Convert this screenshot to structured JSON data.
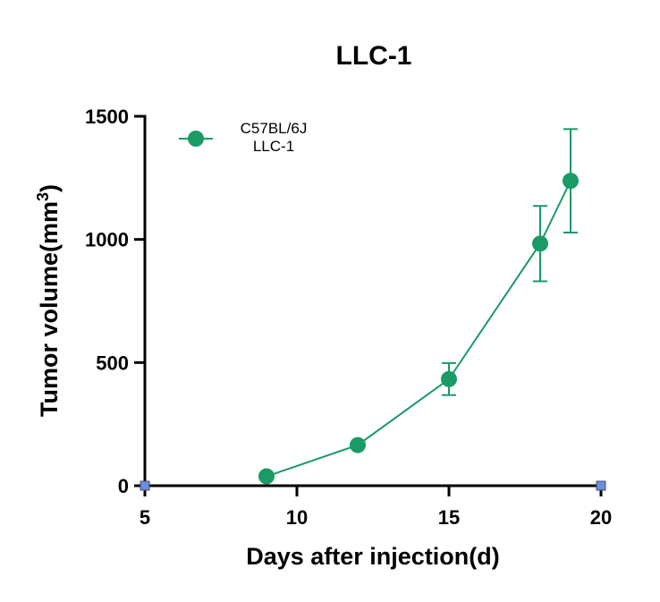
{
  "chart_data": {
    "type": "line",
    "title": "LLC-1",
    "xlabel": "Days after injection(d)",
    "ylabel": "Tumor volume(mm",
    "ylabel_sup": "3",
    "ylabel_close": ")",
    "xlim": [
      5,
      20
    ],
    "ylim": [
      0,
      1500
    ],
    "xticks": [
      "5",
      "10",
      "15",
      "20"
    ],
    "yticks": [
      "0",
      "500",
      "1000",
      "1500"
    ],
    "legend_position": "top-left",
    "series": [
      {
        "name": "C57BL/6J LLC-1",
        "legend_lines": [
          "C57BL/6J",
          "LLC-1"
        ],
        "color": "#1a9a66",
        "points": [
          {
            "x": 9,
            "y": 38,
            "err": 0
          },
          {
            "x": 12,
            "y": 165,
            "err": 0
          },
          {
            "x": 15,
            "y": 433,
            "err": 65
          },
          {
            "x": 18,
            "y": 983,
            "err": 153
          },
          {
            "x": 19,
            "y": 1238,
            "err": 210
          }
        ]
      }
    ]
  }
}
